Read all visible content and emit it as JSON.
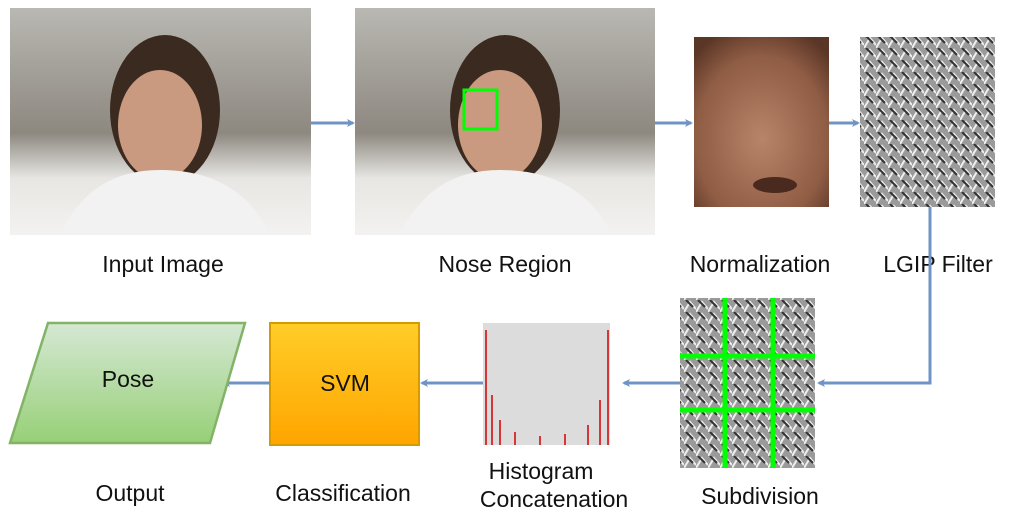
{
  "nodes": [
    {
      "caption": "Input Image"
    },
    {
      "caption": "Nose Region"
    },
    {
      "caption": "Normalization"
    },
    {
      "caption": "LGIP Filter"
    },
    {
      "caption": "Subdivision"
    },
    {
      "caption_lines": [
        "Histogram",
        "Concatenation"
      ]
    },
    {
      "label": "SVM",
      "caption": "Classification"
    },
    {
      "label": "Pose",
      "caption": "Output"
    }
  ]
}
